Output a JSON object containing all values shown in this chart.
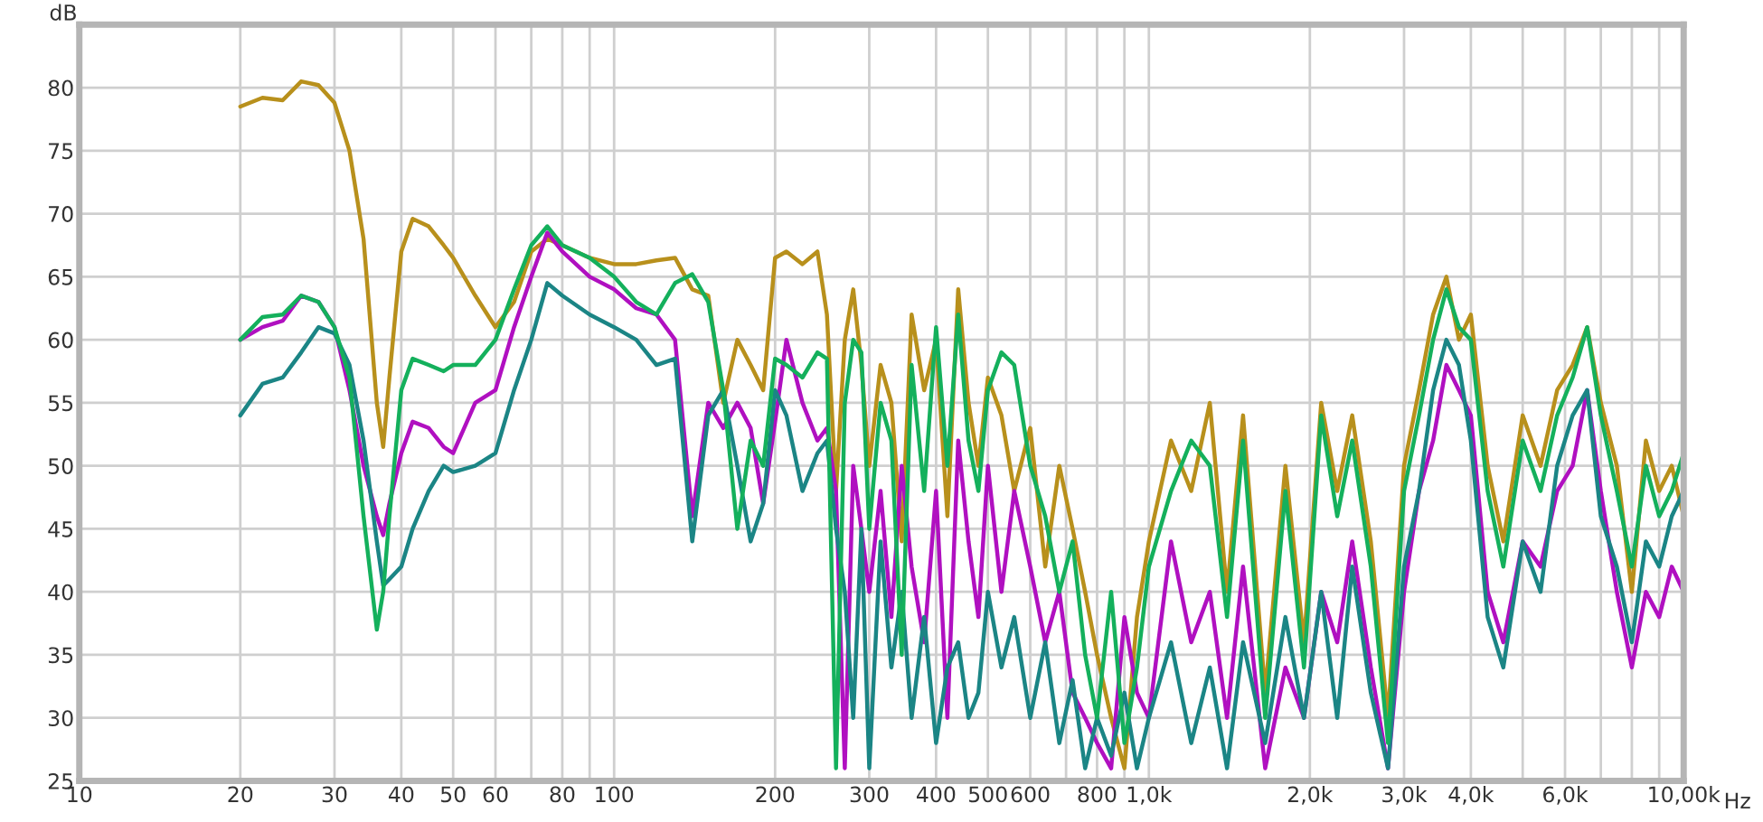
{
  "chart_data": {
    "type": "line",
    "xlabel": "Hz",
    "ylabel": "dB",
    "log": "x",
    "grid": true,
    "marker": "none",
    "line_style": "solid",
    "xlim": [
      10,
      10000
    ],
    "ylim": [
      25,
      85
    ],
    "xticks": [
      10,
      20,
      30,
      40,
      50,
      60,
      {
        "value": 70,
        "label": null
      },
      80,
      {
        "value": 90,
        "label": null
      },
      100,
      200,
      300,
      400,
      500,
      600,
      {
        "value": 700,
        "label": null
      },
      800,
      {
        "value": 900,
        "label": null
      },
      {
        "value": 1000,
        "label": "1,0k"
      },
      {
        "value": 2000,
        "label": "2,0k"
      },
      {
        "value": 3000,
        "label": "3,0k"
      },
      {
        "value": 4000,
        "label": "4,0k"
      },
      {
        "value": 5000,
        "label": null
      },
      {
        "value": 6000,
        "label": "6,0k"
      },
      {
        "value": 7000,
        "label": null
      },
      {
        "value": 8000,
        "label": null
      },
      {
        "value": 9000,
        "label": null
      },
      {
        "value": 10000,
        "label": "10,00k"
      }
    ],
    "yticks": [
      25,
      30,
      35,
      40,
      45,
      50,
      55,
      60,
      65,
      70,
      75,
      80
    ],
    "x": [
      20,
      22,
      24,
      26,
      28,
      30,
      32,
      34,
      36,
      37,
      38,
      40,
      42,
      45,
      48,
      50,
      55,
      60,
      65,
      70,
      75,
      80,
      90,
      100,
      110,
      120,
      130,
      140,
      150,
      160,
      170,
      180,
      190,
      200,
      210,
      225,
      240,
      250,
      260,
      270,
      280,
      290,
      300,
      315,
      330,
      345,
      360,
      380,
      400,
      420,
      440,
      460,
      480,
      500,
      530,
      560,
      600,
      640,
      680,
      720,
      760,
      800,
      850,
      900,
      950,
      1000,
      1100,
      1200,
      1300,
      1400,
      1500,
      1650,
      1800,
      1950,
      2100,
      2250,
      2400,
      2600,
      2800,
      3000,
      3200,
      3400,
      3600,
      3800,
      4000,
      4300,
      4600,
      5000,
      5400,
      5800,
      6200,
      6600,
      7000,
      7500,
      8000,
      8500,
      9000,
      9500,
      10000
    ],
    "series": [
      {
        "color": "#b8901c",
        "values": [
          78.5,
          79.2,
          79,
          80.5,
          80.2,
          78.8,
          75,
          68,
          55,
          51.5,
          57,
          67,
          69.6,
          69,
          67.5,
          66.5,
          63.5,
          61,
          63,
          67,
          68,
          67.5,
          66.5,
          66,
          66,
          66.3,
          66.5,
          64,
          63.5,
          55,
          60,
          58,
          56,
          66.5,
          67,
          66,
          67,
          62,
          48,
          60,
          64,
          58,
          50,
          58,
          55,
          44,
          62,
          56,
          60,
          46,
          64,
          55,
          50,
          57,
          54,
          48,
          53,
          42,
          50,
          45,
          40,
          35,
          30,
          26,
          38,
          44,
          52,
          48,
          55,
          40,
          54,
          32,
          50,
          36,
          55,
          48,
          54,
          44,
          30,
          50,
          56,
          62,
          65,
          60,
          62,
          50,
          44,
          54,
          50,
          56,
          58,
          61,
          55,
          50,
          40,
          52,
          48,
          50,
          46
        ]
      },
      {
        "color": "#b010c0",
        "values": [
          60,
          61,
          61.5,
          63.5,
          63,
          61,
          56,
          50,
          46,
          44.5,
          47,
          51,
          53.5,
          53,
          51.5,
          51,
          55,
          56,
          61,
          65,
          68.5,
          67,
          65,
          64,
          62.5,
          62,
          60,
          46,
          55,
          53,
          55,
          53,
          47,
          53.5,
          60,
          55,
          52,
          53,
          48,
          26,
          50,
          45,
          40,
          48,
          38,
          50,
          42,
          36,
          48,
          30,
          52,
          44,
          38,
          50,
          40,
          48,
          42,
          36,
          40,
          32,
          30,
          28,
          26,
          38,
          32,
          30,
          44,
          36,
          40,
          30,
          42,
          26,
          34,
          30,
          40,
          36,
          44,
          34,
          26,
          40,
          48,
          52,
          58,
          56,
          54,
          40,
          36,
          44,
          42,
          48,
          50,
          56,
          48,
          40,
          34,
          40,
          38,
          42,
          40
        ]
      },
      {
        "color": "#1b8585",
        "values": [
          54,
          56.5,
          57,
          59,
          61,
          60.5,
          58,
          52,
          44,
          40.5,
          41,
          42,
          45,
          48,
          50,
          49.5,
          50,
          51,
          56,
          60,
          64.5,
          63.5,
          62,
          61,
          60,
          58,
          58.5,
          44,
          54,
          56,
          50,
          44,
          47,
          56,
          54,
          48,
          51,
          52,
          45,
          40,
          30,
          45,
          26,
          44,
          34,
          40,
          30,
          38,
          28,
          34,
          36,
          30,
          32,
          40,
          34,
          38,
          30,
          36,
          28,
          33,
          26,
          30,
          27,
          32,
          26,
          30,
          36,
          28,
          34,
          26,
          36,
          28,
          38,
          30,
          40,
          30,
          42,
          32,
          26,
          42,
          48,
          56,
          60,
          58,
          52,
          38,
          34,
          44,
          40,
          50,
          54,
          56,
          46,
          42,
          36,
          44,
          42,
          46,
          48
        ]
      },
      {
        "color": "#14b05c",
        "values": [
          60,
          61.8,
          62,
          63.5,
          63,
          61,
          57,
          46,
          37,
          40,
          46,
          56,
          58.5,
          58,
          57.5,
          58,
          58,
          60,
          64,
          67.5,
          69,
          67.5,
          66.5,
          65,
          63,
          62,
          64.5,
          65.2,
          63,
          56,
          45,
          52,
          50,
          58.5,
          58,
          57,
          59,
          58.5,
          26,
          55,
          60,
          59,
          45,
          55,
          52,
          35,
          58,
          48,
          61,
          50,
          62,
          52,
          48,
          56,
          59,
          58,
          50,
          46,
          40,
          44,
          35,
          30,
          40,
          28,
          34,
          42,
          48,
          52,
          50,
          38,
          52,
          30,
          48,
          34,
          54,
          46,
          52,
          42,
          28,
          48,
          54,
          60,
          64,
          61,
          60,
          48,
          42,
          52,
          48,
          54,
          57,
          61,
          54,
          48,
          42,
          50,
          46,
          48,
          51
        ]
      }
    ]
  }
}
